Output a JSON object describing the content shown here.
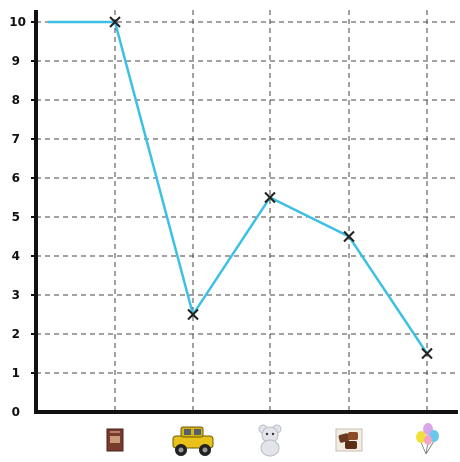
{
  "chart_data": {
    "type": "line",
    "title": "",
    "xlabel": "",
    "ylabel": "",
    "ylim": [
      0,
      10
    ],
    "y_ticks": [
      "0",
      "1",
      "2",
      "3",
      "4",
      "5",
      "6",
      "7",
      "8",
      "9",
      "10"
    ],
    "grid": true,
    "categories": [
      "book",
      "toy-car",
      "teddy-bear",
      "chocolates",
      "balloons"
    ],
    "category_icons": [
      "book-icon",
      "toy-car-icon",
      "teddy-bear-icon",
      "chocolates-icon",
      "balloons-icon"
    ],
    "series": [
      {
        "values": [
          10,
          2.5,
          5.5,
          4.5,
          1.5
        ],
        "color": "#3ec0e6"
      }
    ],
    "colors": {
      "axis": "#111111",
      "grid": "#444444",
      "line": "#3ec0e6",
      "marker": "#222222"
    }
  }
}
